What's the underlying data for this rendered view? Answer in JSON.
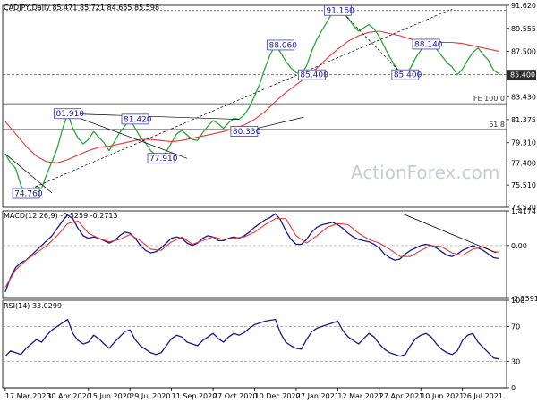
{
  "chart_data": {
    "type": "line",
    "panels": [
      {
        "id": "price",
        "title": "CADJPY,Daily  85.471 85.721 84.655 85.598",
        "y_ticks": [
          "91.620",
          "89.555",
          "87.500",
          "85.400",
          "83.430",
          "81.375",
          "79.310",
          "77.480",
          "75.510",
          "73.520"
        ],
        "ylim": [
          73.52,
          91.62
        ],
        "series": [
          {
            "name": "",
            "color": "#2fa53a",
            "x": [
              0,
              4,
              8,
              12,
              16,
              20,
              24,
              28,
              32,
              36,
              40,
              44,
              48,
              52,
              56,
              60,
              64,
              68,
              72,
              76,
              80,
              84,
              88,
              92,
              96,
              100,
              104,
              108,
              112,
              116,
              120,
              124,
              128,
              132,
              136,
              140,
              144,
              148,
              152,
              156,
              160,
              164,
              168,
              172,
              176,
              180,
              184,
              188,
              192,
              196,
              200,
              204,
              208,
              212,
              216,
              220,
              224,
              228,
              232,
              236,
              240,
              244,
              248,
              252,
              256,
              260,
              264,
              268,
              272,
              276,
              280,
              284,
              288,
              292,
              296,
              300,
              304,
              308,
              312,
              316,
              320,
              324,
              328,
              332,
              336,
              340,
              344,
              348,
              352,
              356,
              360,
              364,
              368,
              372,
              376,
              380
            ],
            "y": [
              78.3,
              77.5,
              77.0,
              75.5,
              74.6,
              74.9,
              75.4,
              75.2,
              76.5,
              77.6,
              78.8,
              80.5,
              81.91,
              80.6,
              79.7,
              79.2,
              79.6,
              80.3,
              79.8,
              79.3,
              78.6,
              79.4,
              80.2,
              80.8,
              81.42,
              80.6,
              79.8,
              79.3,
              78.6,
              78.2,
              77.91,
              78.5,
              79.3,
              80.1,
              80.4,
              80.0,
              79.6,
              79.5,
              80.2,
              80.8,
              81.3,
              81.0,
              80.6,
              81.1,
              81.5,
              81.4,
              81.8,
              82.5,
              83.5,
              84.6,
              86.0,
              87.2,
              88.06,
              87.4,
              86.6,
              86.0,
              85.6,
              85.4,
              86.2,
              87.5,
              88.6,
              89.4,
              90.2,
              91.0,
              91.16,
              90.9,
              90.5,
              89.8,
              89.3,
              89.6,
              89.9,
              89.5,
              88.8,
              87.9,
              87.0,
              86.2,
              85.6,
              85.4,
              86.0,
              86.9,
              87.6,
              88.14,
              88.3,
              87.7,
              87.1,
              86.5,
              86.1,
              85.4,
              85.9,
              86.7,
              87.4,
              87.8,
              87.2,
              86.7,
              85.8,
              85.5
            ]
          },
          {
            "name": "",
            "color": "#e53b3b",
            "x": [
              0,
              8,
              16,
              24,
              32,
              40,
              48,
              56,
              64,
              72,
              80,
              88,
              96,
              104,
              112,
              120,
              128,
              136,
              144,
              152,
              160,
              168,
              176,
              184,
              192,
              200,
              208,
              216,
              224,
              232,
              240,
              248,
              256,
              264,
              272,
              280,
              288,
              296,
              304,
              312,
              320,
              328,
              336,
              344,
              352,
              360,
              368,
              376,
              380
            ],
            "y": [
              81.2,
              80.1,
              79.0,
              78.1,
              77.6,
              77.5,
              77.8,
              78.2,
              78.6,
              78.9,
              79.0,
              79.2,
              79.4,
              79.6,
              79.6,
              79.5,
              79.4,
              79.5,
              79.7,
              79.9,
              80.1,
              80.3,
              80.6,
              80.9,
              81.4,
              82.1,
              83.0,
              83.8,
              84.5,
              85.2,
              86.0,
              86.9,
              87.7,
              88.4,
              88.9,
              89.2,
              89.3,
              89.1,
              88.9,
              88.6,
              88.4,
              88.3,
              88.3,
              88.3,
              88.2,
              88.0,
              87.8,
              87.6,
              87.5
            ]
          }
        ],
        "annotations": [
          {
            "text": "74.760",
            "x": 16,
            "y": 74.76
          },
          {
            "text": "81.910",
            "x": 48,
            "y": 81.91
          },
          {
            "text": "81.420",
            "x": 100,
            "y": 81.42
          },
          {
            "text": "77.910",
            "x": 120,
            "y": 77.91
          },
          {
            "text": "80.330",
            "x": 184,
            "y": 80.33
          },
          {
            "text": "88.060",
            "x": 212,
            "y": 88.06
          },
          {
            "text": "85.400",
            "x": 236,
            "y": 85.4
          },
          {
            "text": "91.160",
            "x": 256,
            "y": 91.16
          },
          {
            "text": "85.400",
            "x": 308,
            "y": 85.4
          },
          {
            "text": "88.140",
            "x": 324,
            "y": 88.14
          }
        ],
        "fib_labels": [
          {
            "text": "FE 100.0",
            "y": 82.8
          },
          {
            "text": "61.8",
            "y": 80.5
          }
        ],
        "horizontal_levels": [
          85.4,
          82.8,
          80.5,
          91.16
        ]
      },
      {
        "id": "macd",
        "title": "MACD(12,26,9) -0.5259 -0.2713",
        "y_ticks": [
          "1.4174",
          "0.00",
          "-2.1591"
        ],
        "ylim": [
          -2.1591,
          1.4174
        ],
        "series": [
          {
            "name": "",
            "color": "#1a1a8a",
            "x": [
              0,
              4,
              8,
              12,
              16,
              20,
              24,
              28,
              32,
              36,
              40,
              44,
              48,
              52,
              56,
              60,
              64,
              68,
              72,
              76,
              80,
              84,
              88,
              92,
              96,
              100,
              104,
              108,
              112,
              116,
              120,
              124,
              128,
              132,
              136,
              140,
              144,
              148,
              152,
              156,
              160,
              164,
              168,
              172,
              176,
              180,
              184,
              188,
              192,
              196,
              200,
              204,
              208,
              212,
              216,
              220,
              224,
              228,
              232,
              236,
              240,
              244,
              248,
              252,
              256,
              260,
              264,
              268,
              272,
              276,
              280,
              284,
              288,
              292,
              296,
              300,
              304,
              308,
              312,
              316,
              320,
              324,
              328,
              332,
              336,
              340,
              344,
              348,
              352,
              356,
              360,
              364,
              368,
              372,
              376,
              380
            ],
            "y": [
              -1.9,
              -1.3,
              -0.9,
              -0.7,
              -0.6,
              -0.4,
              -0.2,
              0.0,
              0.2,
              0.4,
              0.7,
              1.0,
              1.25,
              1.1,
              0.7,
              0.4,
              0.3,
              0.35,
              0.3,
              0.2,
              0.1,
              0.2,
              0.4,
              0.55,
              0.5,
              0.3,
              0.0,
              -0.2,
              -0.3,
              -0.25,
              -0.1,
              0.1,
              0.3,
              0.35,
              0.3,
              0.1,
              0.0,
              0.1,
              0.3,
              0.4,
              0.35,
              0.2,
              0.2,
              0.3,
              0.35,
              0.3,
              0.4,
              0.55,
              0.75,
              0.9,
              1.05,
              1.15,
              1.3,
              1.05,
              0.6,
              0.25,
              0.05,
              0.05,
              0.25,
              0.55,
              0.75,
              0.85,
              0.9,
              0.95,
              0.85,
              0.7,
              0.5,
              0.35,
              0.25,
              0.2,
              0.15,
              0.05,
              -0.1,
              -0.35,
              -0.5,
              -0.6,
              -0.55,
              -0.35,
              -0.2,
              -0.1,
              0.0,
              0.05,
              0.0,
              -0.1,
              -0.25,
              -0.4,
              -0.45,
              -0.35,
              -0.2,
              -0.1,
              0.0,
              -0.1,
              -0.2,
              -0.35,
              -0.5,
              -0.53
            ]
          },
          {
            "name": "",
            "color": "#e53b3b",
            "x": [
              0,
              8,
              16,
              24,
              32,
              40,
              48,
              56,
              64,
              72,
              80,
              88,
              96,
              104,
              112,
              120,
              128,
              136,
              144,
              152,
              160,
              168,
              176,
              184,
              192,
              200,
              208,
              216,
              224,
              232,
              240,
              248,
              256,
              264,
              272,
              280,
              288,
              296,
              304,
              312,
              320,
              328,
              336,
              344,
              352,
              360,
              368,
              376,
              380
            ],
            "y": [
              -1.7,
              -1.0,
              -0.6,
              -0.3,
              0.0,
              0.4,
              0.9,
              1.0,
              0.5,
              0.3,
              0.15,
              0.25,
              0.45,
              0.2,
              -0.15,
              -0.2,
              0.15,
              0.35,
              0.05,
              0.2,
              0.35,
              0.25,
              0.3,
              0.35,
              0.55,
              0.85,
              1.1,
              1.1,
              0.4,
              0.1,
              0.4,
              0.75,
              0.9,
              0.85,
              0.5,
              0.25,
              0.1,
              -0.15,
              -0.45,
              -0.45,
              -0.2,
              0.0,
              -0.05,
              -0.3,
              -0.4,
              -0.15,
              -0.05,
              -0.25,
              -0.27
            ]
          }
        ],
        "trendline": [
          [
            306,
            1.3
          ],
          [
            378,
            -0.3
          ]
        ]
      },
      {
        "id": "rsi",
        "title": "RSI(14) 33.0299",
        "y_ticks": [
          "100",
          "70",
          "30",
          "0"
        ],
        "ylim": [
          0,
          100
        ],
        "series": [
          {
            "name": "",
            "color": "#1a1a8a",
            "x": [
              0,
              4,
              8,
              12,
              16,
              20,
              24,
              28,
              32,
              36,
              40,
              44,
              48,
              52,
              56,
              60,
              64,
              68,
              72,
              76,
              80,
              84,
              88,
              92,
              96,
              100,
              104,
              108,
              112,
              116,
              120,
              124,
              128,
              132,
              136,
              140,
              144,
              148,
              152,
              156,
              160,
              164,
              168,
              172,
              176,
              180,
              184,
              188,
              192,
              196,
              200,
              204,
              208,
              212,
              216,
              220,
              224,
              228,
              232,
              236,
              240,
              244,
              248,
              252,
              256,
              260,
              264,
              268,
              272,
              276,
              280,
              284,
              288,
              292,
              296,
              300,
              304,
              308,
              312,
              316,
              320,
              324,
              328,
              332,
              336,
              340,
              344,
              348,
              352,
              356,
              360,
              364,
              368,
              372,
              376,
              380
            ],
            "y": [
              36,
              42,
              40,
              38,
              45,
              50,
              55,
              52,
              60,
              66,
              70,
              74,
              78,
              62,
              54,
              50,
              52,
              60,
              56,
              50,
              45,
              52,
              58,
              64,
              66,
              55,
              48,
              44,
              40,
              38,
              40,
              48,
              56,
              60,
              58,
              52,
              50,
              48,
              54,
              58,
              62,
              56,
              52,
              58,
              62,
              60,
              63,
              68,
              72,
              74,
              76,
              77,
              78,
              62,
              52,
              48,
              45,
              44,
              55,
              64,
              68,
              70,
              72,
              74,
              76,
              65,
              58,
              54,
              50,
              56,
              62,
              58,
              50,
              44,
              40,
              38,
              36,
              38,
              48,
              56,
              60,
              62,
              58,
              50,
              44,
              40,
              38,
              42,
              54,
              60,
              62,
              52,
              46,
              40,
              34,
              33
            ]
          }
        ]
      }
    ],
    "x_axis": {
      "tick_labels": [
        "17 Mar 2020",
        "30 Apr 2020",
        "15 Jun 2020",
        "29 Jul 2020",
        "11 Sep 2020",
        "27 Oct 2020",
        "10 Dec 2020",
        "27 Jan 2021",
        "12 Mar 2021",
        "27 Apr 2021",
        "10 Jun 2021",
        "26 Jul 2021"
      ],
      "tick_x": [
        0,
        32,
        64,
        96,
        128,
        160,
        192,
        224,
        256,
        288,
        320,
        352
      ],
      "xlim": [
        -2,
        386
      ]
    },
    "watermark": "ActionForex.com",
    "grid": false,
    "colors": {
      "background": "#ffffff",
      "axis": "#000000",
      "current_price_tag": "#2b2b2b",
      "macd_zero_dashes": "#b0b0b0"
    }
  }
}
